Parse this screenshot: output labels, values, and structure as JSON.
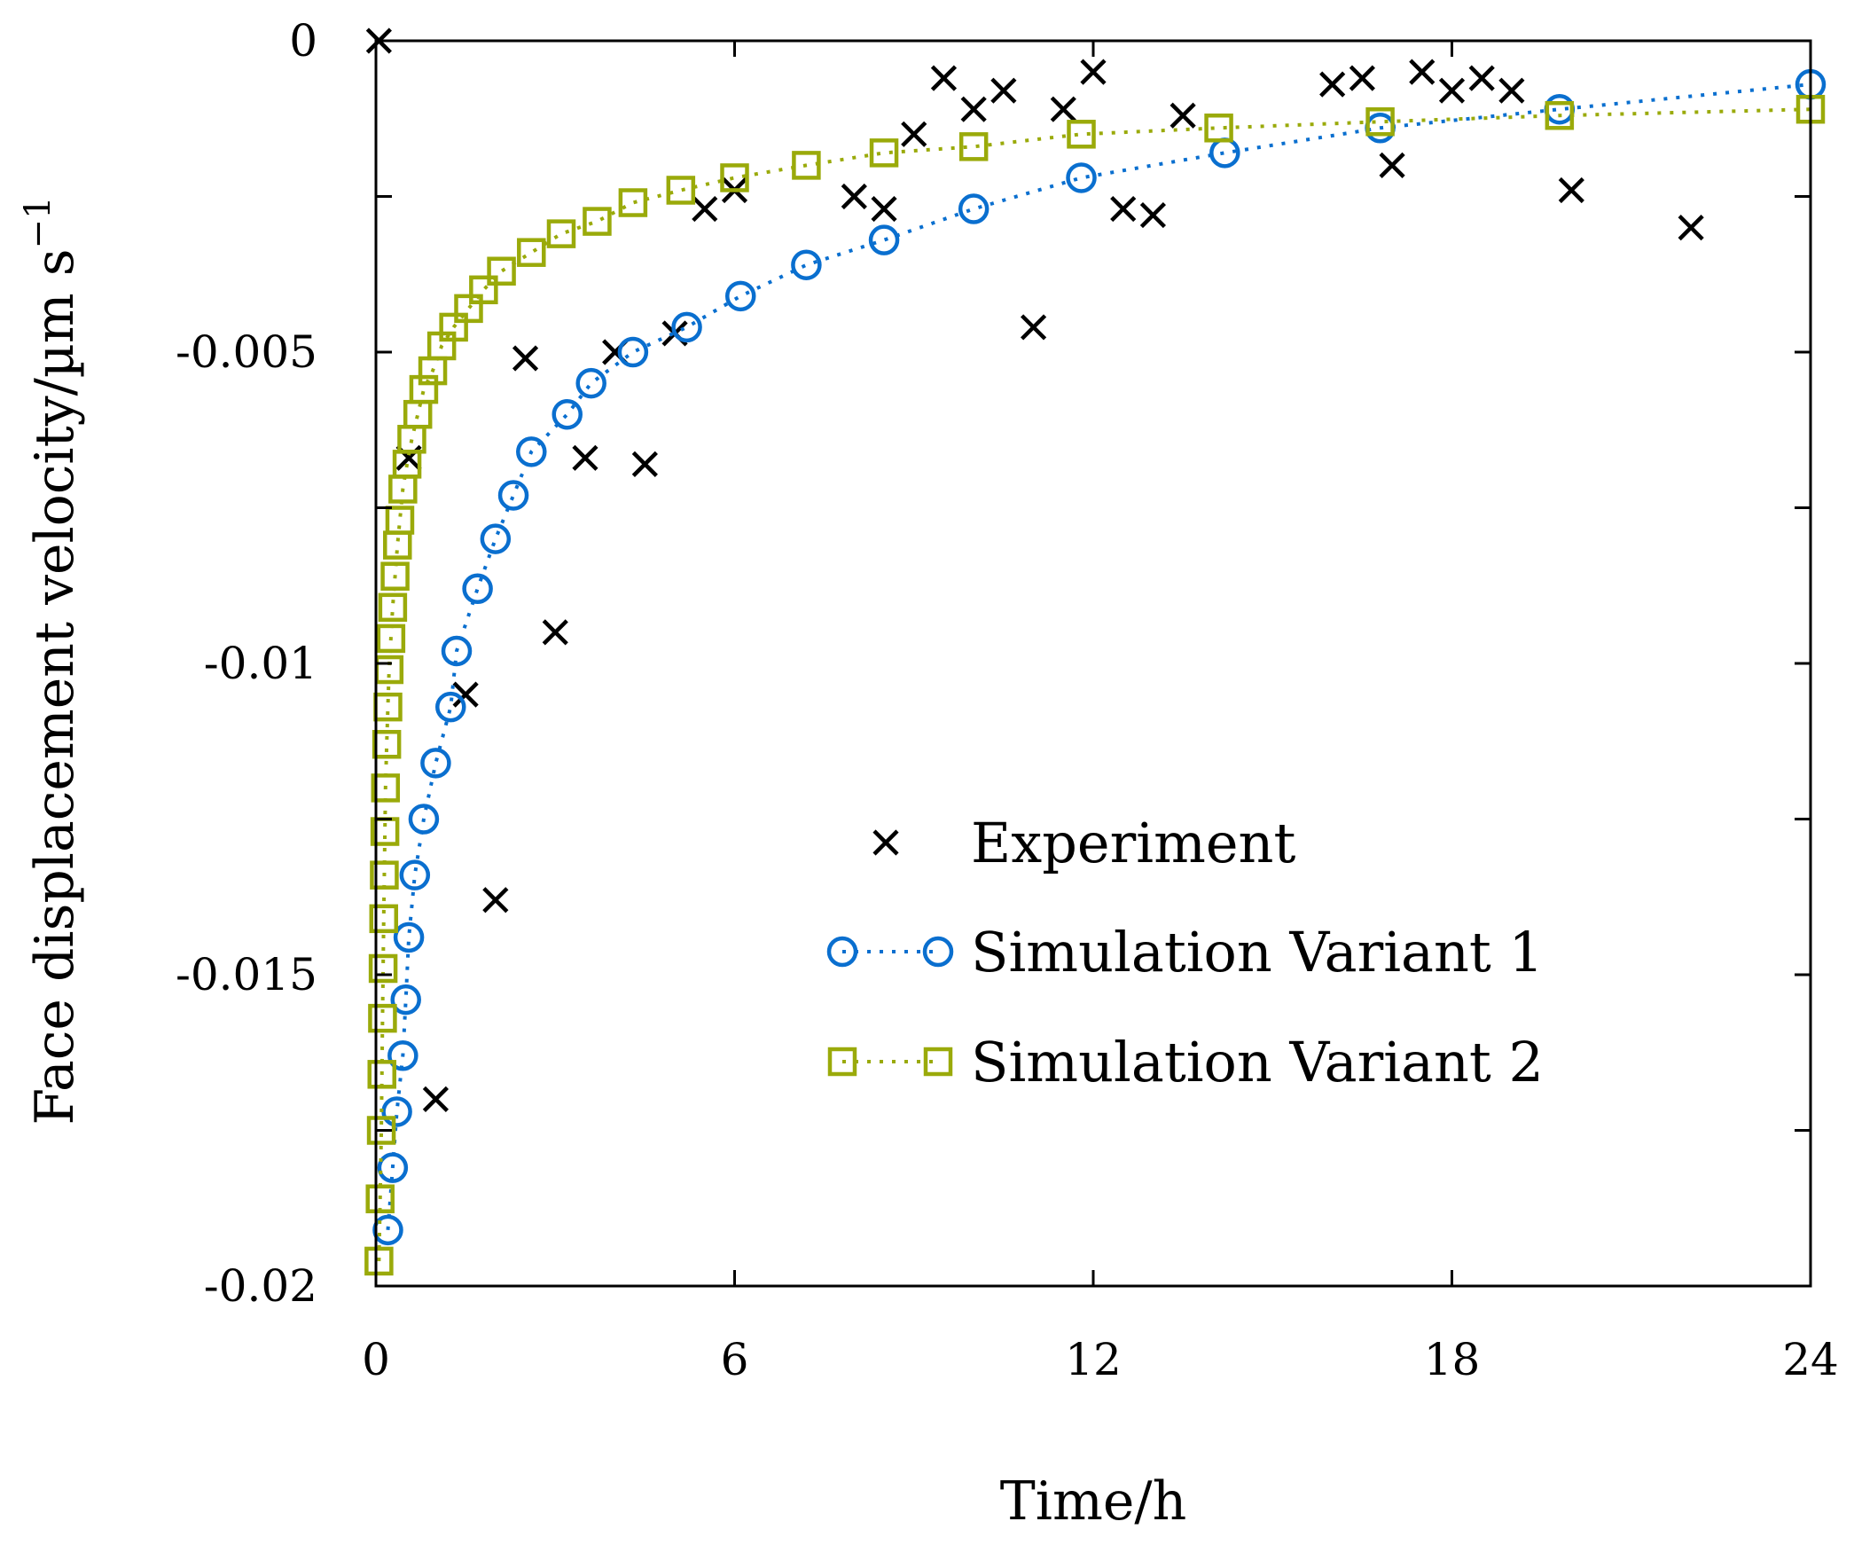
{
  "chart_data": {
    "type": "scatter",
    "title": "",
    "xlabel": "Time/h",
    "ylabel": "Face displacement velocity/µm s",
    "ylabel_superscript": "−1",
    "xlim": [
      0,
      24
    ],
    "ylim": [
      -0.02,
      0
    ],
    "xticks": [
      0,
      6,
      12,
      18,
      24
    ],
    "xtick_labels": [
      "0",
      "6",
      "12",
      "18",
      "24"
    ],
    "yticks": [
      0,
      -0.005,
      -0.01,
      -0.015,
      -0.02
    ],
    "ytick_labels": [
      "0",
      "-0.005",
      "-0.01",
      "-0.015",
      "-0.02"
    ],
    "yminor_step": 0.0025,
    "legend_position": "center-right",
    "series": [
      {
        "name": "Experiment",
        "marker": "x",
        "line": "none",
        "color": "#000000",
        "x": [
          0.05,
          0.55,
          1.0,
          1.5,
          2.0,
          2.5,
          3.0,
          3.5,
          4.0,
          4.5,
          5.0,
          5.5,
          6.0,
          8.0,
          8.5,
          9.0,
          9.5,
          10.0,
          10.5,
          11.0,
          11.5,
          12.0,
          12.5,
          13.0,
          13.5,
          16.0,
          16.5,
          17.0,
          17.5,
          18.0,
          18.5,
          19.0,
          20.0,
          22.0
        ],
        "y": [
          0.0,
          -0.0067,
          -0.017,
          -0.0105,
          -0.0138,
          -0.0051,
          -0.0095,
          -0.0067,
          -0.005,
          -0.0068,
          -0.0047,
          -0.0027,
          -0.0024,
          -0.0025,
          -0.0027,
          -0.0015,
          -0.0006,
          -0.0011,
          -0.0008,
          -0.0046,
          -0.0011,
          -0.0005,
          -0.0027,
          -0.0028,
          -0.0012,
          -0.0007,
          -0.0006,
          -0.002,
          -0.0005,
          -0.0008,
          -0.0006,
          -0.0008,
          -0.0024,
          -0.003
        ]
      },
      {
        "name": "Simulation Variant 1",
        "marker": "circle",
        "line": "dotted",
        "color": "#0a6fcf",
        "x": [
          0.2,
          0.28,
          0.35,
          0.45,
          0.5,
          0.55,
          0.65,
          0.8,
          1.0,
          1.25,
          1.35,
          1.7,
          2.0,
          2.3,
          2.6,
          3.2,
          3.6,
          4.3,
          5.2,
          6.1,
          7.2,
          8.5,
          10.0,
          11.8,
          14.2,
          16.8,
          19.8,
          24.0
        ],
        "y": [
          -0.0191,
          -0.0181,
          -0.0172,
          -0.0163,
          -0.0154,
          -0.0144,
          -0.0134,
          -0.0125,
          -0.0116,
          -0.0107,
          -0.0098,
          -0.0088,
          -0.008,
          -0.0073,
          -0.0066,
          -0.006,
          -0.0055,
          -0.005,
          -0.0046,
          -0.0041,
          -0.0036,
          -0.0032,
          -0.0027,
          -0.0022,
          -0.0018,
          -0.0014,
          -0.0011,
          -0.0007
        ]
      },
      {
        "name": "Simulation Variant 2",
        "marker": "square",
        "line": "dotted",
        "color": "#9aaa0a",
        "x": [
          0.05,
          0.07,
          0.09,
          0.1,
          0.11,
          0.12,
          0.13,
          0.14,
          0.15,
          0.16,
          0.18,
          0.2,
          0.22,
          0.25,
          0.28,
          0.32,
          0.36,
          0.4,
          0.45,
          0.52,
          0.6,
          0.7,
          0.8,
          0.95,
          1.1,
          1.3,
          1.55,
          1.8,
          2.1,
          2.6,
          3.1,
          3.7,
          4.3,
          5.1,
          6.0,
          7.2,
          8.5,
          10.0,
          11.8,
          14.1,
          16.8,
          19.8,
          24.0
        ],
        "y": [
          -0.0196,
          -0.0186,
          -0.0175,
          -0.0166,
          -0.0157,
          -0.0149,
          -0.0141,
          -0.0134,
          -0.0127,
          -0.012,
          -0.0113,
          -0.0107,
          -0.0101,
          -0.0096,
          -0.0091,
          -0.0086,
          -0.0081,
          -0.0077,
          -0.0072,
          -0.0068,
          -0.0064,
          -0.006,
          -0.0056,
          -0.0053,
          -0.0049,
          -0.0046,
          -0.0043,
          -0.004,
          -0.0037,
          -0.0034,
          -0.0031,
          -0.0029,
          -0.0026,
          -0.0024,
          -0.0022,
          -0.002,
          -0.0018,
          -0.0017,
          -0.0015,
          -0.0014,
          -0.0013,
          -0.0012,
          -0.0011
        ]
      }
    ]
  }
}
